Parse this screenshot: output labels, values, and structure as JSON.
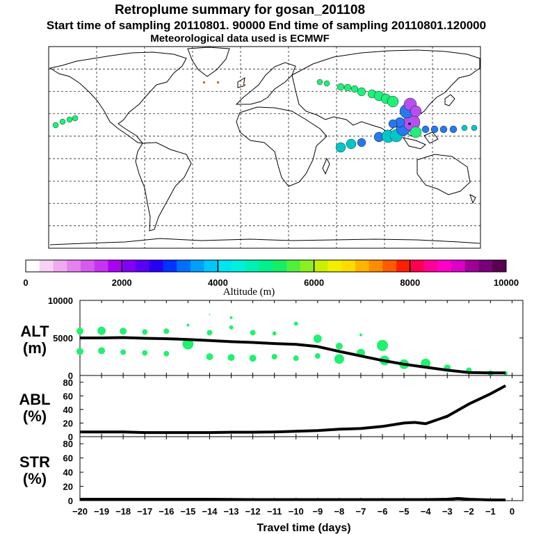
{
  "header": {
    "title": "Retroplume summary for gosan_201108",
    "sampling": "Start time of sampling 20110801. 90000     End time of sampling 20110801.120000",
    "met": "Meteorological data used is ECMWF"
  },
  "colorbar": {
    "label": "Altitude (m)",
    "min": 0,
    "max": 10000,
    "tick_labels": [
      "0",
      "2000",
      "4000",
      "6000",
      "8000",
      "10000"
    ],
    "tick_values": [
      0,
      2000,
      4000,
      6000,
      8000,
      10000
    ],
    "colors": [
      "#ffffff",
      "#f7d2f7",
      "#f0aaf0",
      "#e682f0",
      "#d75af0",
      "#c832f0",
      "#aa00f5",
      "#8200f5",
      "#5a00f5",
      "#2800f5",
      "#0032ff",
      "#006eff",
      "#00a0ff",
      "#00c8ff",
      "#00e6f0",
      "#00f0dc",
      "#00f0b4",
      "#00f08c",
      "#14f064",
      "#50f03c",
      "#8cf01e",
      "#c8f000",
      "#f0f000",
      "#ffdc00",
      "#ffb400",
      "#ff8c00",
      "#ff5a00",
      "#ff1e00",
      "#ff0050",
      "#ff0096",
      "#ff00c8",
      "#dc00c8",
      "#a00096",
      "#780078",
      "#5a0050"
    ]
  },
  "map": {
    "grid": "dashed",
    "trajectory_colors": {
      "upper": "#1ef07a",
      "mid": "#00c8c8",
      "near": "#2878f0",
      "source": "#b450f0"
    }
  },
  "chart_data": [
    {
      "type": "line",
      "panel": "ALT",
      "ylabel": "ALT\n(m)",
      "ylabel_lines": [
        "ALT",
        "(m)"
      ],
      "xlabel": "Travel time (days)",
      "xlim": [
        -20,
        0.5
      ],
      "ylim": [
        0,
        10000
      ],
      "yticks": [
        0,
        5000,
        10000
      ],
      "ytick_labels": [
        "0",
        "5000",
        "10000"
      ],
      "x": [
        -20,
        -19,
        -18,
        -17,
        -16,
        -15,
        -14,
        -13,
        -12,
        -11,
        -10,
        -9,
        -8,
        -7,
        -6,
        -5,
        -4,
        -3,
        -2,
        -1,
        -0.3
      ],
      "y": [
        5000,
        5000,
        5050,
        4950,
        4900,
        4800,
        4650,
        4500,
        4400,
        4250,
        4150,
        3850,
        3200,
        2600,
        2000,
        1500,
        1100,
        700,
        400,
        350,
        350
      ],
      "bubbles": {
        "color": "#22f070",
        "x": [
          -20,
          -20,
          -19,
          -19,
          -18,
          -18,
          -17,
          -17,
          -16,
          -16,
          -15,
          -15,
          -14,
          -14,
          -14,
          -13,
          -13,
          -13,
          -12,
          -12,
          -11,
          -11,
          -10,
          -10,
          -9,
          -9,
          -8,
          -8,
          -7,
          -7,
          -6,
          -5.9,
          -5,
          -4,
          -3,
          -2,
          -1,
          -0.3
        ],
        "y": [
          5900,
          3200,
          5950,
          3300,
          5900,
          3100,
          5800,
          3000,
          5900,
          2900,
          6700,
          4200,
          5700,
          2500,
          8100,
          6400,
          2400,
          7700,
          5700,
          2300,
          5600,
          2500,
          6900,
          2300,
          4900,
          2600,
          3900,
          2200,
          5400,
          3000,
          4000,
          2000,
          1500,
          1600,
          1000,
          700,
          300,
          300
        ],
        "r": [
          5,
          5,
          6,
          5,
          5,
          4,
          4,
          4,
          4,
          4,
          2,
          8,
          4,
          5,
          1,
          3,
          5,
          2,
          4,
          5,
          3,
          4,
          3,
          4,
          6,
          4,
          5,
          7,
          2,
          6,
          8,
          7,
          7,
          7,
          5,
          4,
          4,
          3
        ]
      }
    },
    {
      "type": "line",
      "panel": "ABL",
      "ylabel": "ABL\n(%)",
      "ylabel_lines": [
        "ABL",
        "(%)"
      ],
      "xlim": [
        -20,
        0.5
      ],
      "ylim": [
        0,
        90
      ],
      "yticks": [
        0,
        20,
        40,
        60,
        80
      ],
      "ytick_labels": [
        "0",
        "20",
        "40",
        "60",
        "80"
      ],
      "x": [
        -20,
        -19,
        -18,
        -17,
        -16,
        -15,
        -14,
        -13,
        -12,
        -11,
        -10,
        -9,
        -8,
        -7,
        -6,
        -5,
        -4.5,
        -4,
        -3,
        -2,
        -1,
        -0.3
      ],
      "y": [
        7,
        7,
        7,
        6,
        6,
        6,
        6,
        6.5,
        6.5,
        7,
        8,
        9,
        11,
        12,
        15,
        20,
        21,
        19,
        30,
        48,
        63,
        75
      ]
    },
    {
      "type": "line",
      "panel": "STR",
      "ylabel": "STR\n(%)",
      "ylabel_lines": [
        "STR",
        "(%)"
      ],
      "xlim": [
        -20,
        0.5
      ],
      "ylim": [
        0,
        90
      ],
      "yticks": [
        0,
        20,
        40,
        60,
        80
      ],
      "ytick_labels": [
        "0",
        "20",
        "40",
        "60",
        "80"
      ],
      "x": [
        -20,
        -18,
        -16,
        -14,
        -12,
        -10,
        -8,
        -6,
        -4,
        -3,
        -2.5,
        -2,
        -1,
        -0.3
      ],
      "y": [
        2,
        2,
        2,
        2,
        1.5,
        1.5,
        1.5,
        1.5,
        1.5,
        2,
        3,
        2,
        1,
        1
      ],
      "xticks": [
        -20,
        -19,
        -18,
        -17,
        -16,
        -15,
        -14,
        -13,
        -12,
        -11,
        -10,
        -9,
        -8,
        -7,
        -6,
        -5,
        -4,
        -3,
        -2,
        -1,
        0
      ],
      "xtick_labels": [
        "−20",
        "−19",
        "−18",
        "−17",
        "−16",
        "−15",
        "−14",
        "−13",
        "−12",
        "−11",
        "−10",
        "−9",
        "−8",
        "−7",
        "−6",
        "−5",
        "−4",
        "−3",
        "−2",
        "−1",
        "0"
      ]
    }
  ]
}
